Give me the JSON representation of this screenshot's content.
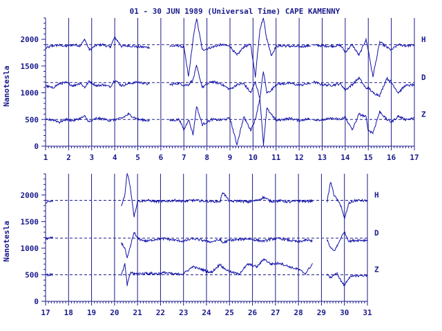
{
  "title": "01 - 30 JUN 1989 (Universal Time) CAPE KAMENNY",
  "ylabel": "Nanotesla",
  "colors": {
    "ink": "#1a1a8c",
    "trace": "#1010a8",
    "background": "#ffffff"
  },
  "chart_data": [
    {
      "type": "line",
      "panel": "days 1-17",
      "ylabel": "Nanotesla",
      "xlim": [
        1,
        17
      ],
      "ylim": [
        0,
        2400
      ],
      "x_ticks": [
        1,
        2,
        3,
        4,
        5,
        6,
        7,
        8,
        9,
        10,
        11,
        12,
        13,
        14,
        15,
        16,
        17
      ],
      "y_ticks": [
        0,
        500,
        1000,
        1500,
        2000
      ],
      "grid_vertical": true,
      "baselines": [
        {
          "name": "H",
          "value": 1900
        },
        {
          "name": "D",
          "value": 1190
        },
        {
          "name": "Z",
          "value": 500
        }
      ],
      "data_gaps": [
        [
          5.5,
          6.4
        ],
        [
          12.5,
          12.65
        ]
      ],
      "series": [
        {
          "name": "H",
          "x": [
            1,
            1.3,
            1.6,
            1.9,
            2.2,
            2.5,
            2.7,
            2.9,
            3.2,
            3.5,
            3.8,
            4.0,
            4.3,
            4.6,
            5.0,
            5.5,
            6.4,
            6.8,
            7.0,
            7.2,
            7.4,
            7.55,
            7.8,
            8.2,
            8.6,
            9.0,
            9.3,
            9.6,
            9.9,
            10.1,
            10.3,
            10.45,
            10.6,
            10.8,
            11.0,
            11.3,
            11.6,
            12.0,
            12.4,
            12.65,
            13.0,
            13.4,
            13.8,
            14.0,
            14.3,
            14.6,
            14.9,
            15.0,
            15.2,
            15.5,
            15.8,
            16.0,
            16.3,
            16.6,
            17.0
          ],
          "values": [
            1830,
            1880,
            1890,
            1870,
            1900,
            1880,
            2000,
            1800,
            1890,
            1900,
            1850,
            2040,
            1870,
            1880,
            1860,
            1850,
            1870,
            1880,
            1850,
            1300,
            2000,
            2400,
            1800,
            1850,
            1900,
            1870,
            1700,
            1860,
            1900,
            1300,
            2200,
            2400,
            2000,
            1700,
            1870,
            1880,
            1870,
            1860,
            1880,
            1890,
            1880,
            1870,
            1890,
            1760,
            1900,
            1700,
            2000,
            1800,
            1300,
            1950,
            1850,
            1800,
            1900,
            1880,
            1890
          ]
        },
        {
          "name": "D",
          "x": [
            1,
            1.3,
            1.6,
            1.9,
            2.2,
            2.5,
            2.7,
            2.9,
            3.2,
            3.5,
            3.8,
            4.0,
            4.3,
            4.6,
            5.0,
            5.5,
            6.4,
            6.8,
            7.0,
            7.2,
            7.4,
            7.55,
            7.8,
            8.2,
            8.6,
            9.0,
            9.3,
            9.6,
            9.9,
            10.1,
            10.3,
            10.45,
            10.6,
            10.8,
            11.0,
            11.3,
            11.6,
            12.0,
            12.4,
            12.65,
            13.0,
            13.4,
            13.8,
            14.0,
            14.3,
            14.6,
            14.9,
            15.0,
            15.2,
            15.5,
            15.8,
            16.0,
            16.3,
            16.6,
            17.0
          ],
          "values": [
            1130,
            1090,
            1170,
            1190,
            1130,
            1180,
            1100,
            1220,
            1130,
            1150,
            1110,
            1240,
            1130,
            1170,
            1200,
            1160,
            1150,
            1180,
            1140,
            1150,
            1250,
            1500,
            1100,
            1210,
            1170,
            1060,
            1150,
            1170,
            1000,
            1200,
            900,
            1400,
            1000,
            1050,
            1160,
            1170,
            1180,
            1140,
            1170,
            1200,
            1150,
            1140,
            1170,
            1050,
            1150,
            1280,
            1080,
            1100,
            1000,
            950,
            1270,
            1200,
            1000,
            1130,
            1150
          ]
        },
        {
          "name": "Z",
          "x": [
            1,
            1.3,
            1.6,
            1.9,
            2.2,
            2.5,
            2.7,
            2.9,
            3.2,
            3.5,
            3.8,
            4.0,
            4.3,
            4.6,
            5.0,
            5.5,
            6.4,
            6.8,
            7.0,
            7.2,
            7.4,
            7.55,
            7.8,
            8.2,
            8.6,
            9.0,
            9.3,
            9.6,
            9.9,
            10.1,
            10.3,
            10.45,
            10.6,
            10.8,
            11.0,
            11.3,
            11.6,
            12.0,
            12.4,
            12.65,
            13.0,
            13.4,
            13.8,
            14.0,
            14.3,
            14.6,
            14.9,
            15.0,
            15.2,
            15.5,
            15.8,
            16.0,
            16.3,
            16.6,
            17.0
          ],
          "values": [
            490,
            500,
            450,
            500,
            480,
            520,
            560,
            450,
            520,
            510,
            480,
            500,
            520,
            600,
            500,
            480,
            480,
            500,
            300,
            500,
            220,
            750,
            400,
            500,
            490,
            520,
            30,
            550,
            300,
            500,
            900,
            20,
            700,
            600,
            480,
            500,
            520,
            480,
            510,
            500,
            490,
            520,
            500,
            550,
            300,
            600,
            550,
            300,
            250,
            650,
            500,
            450,
            560,
            500,
            520
          ]
        }
      ]
    },
    {
      "type": "line",
      "panel": "days 17-31",
      "ylabel": "Nanotesla",
      "xlim": [
        17,
        31
      ],
      "ylim": [
        0,
        2400
      ],
      "x_ticks": [
        17,
        18,
        19,
        20,
        21,
        22,
        23,
        24,
        25,
        26,
        27,
        28,
        29,
        30,
        31
      ],
      "y_ticks": [
        0,
        500,
        1000,
        1500,
        2000
      ],
      "grid_vertical": true,
      "baselines": [
        {
          "name": "H",
          "value": 1900
        },
        {
          "name": "D",
          "value": 1190
        },
        {
          "name": "Z",
          "value": 500
        }
      ],
      "data_gaps": [
        [
          17.3,
          20.3
        ],
        [
          28.6,
          29.25
        ]
      ],
      "series": [
        {
          "name": "H",
          "x": [
            17,
            17.3,
            20.3,
            20.45,
            20.55,
            20.7,
            20.85,
            21.0,
            21.4,
            21.8,
            22.2,
            22.6,
            23.0,
            23.4,
            23.8,
            24.2,
            24.6,
            24.7,
            25.0,
            25.4,
            25.8,
            26.2,
            26.5,
            26.8,
            27.2,
            27.6,
            28.0,
            28.3,
            28.6,
            29.25,
            29.4,
            29.55,
            29.7,
            29.85,
            30.0,
            30.2,
            30.5,
            31.0
          ],
          "values": [
            1860,
            1880,
            1790,
            2000,
            2450,
            2100,
            1600,
            1880,
            1900,
            1880,
            1880,
            1900,
            1880,
            1900,
            1890,
            1880,
            1880,
            2060,
            1880,
            1890,
            1870,
            1900,
            1960,
            1880,
            1890,
            1870,
            1890,
            1880,
            1890,
            1880,
            2250,
            2000,
            1900,
            1800,
            1550,
            1850,
            1900,
            1890
          ]
        },
        {
          "name": "D",
          "x": [
            17,
            17.3,
            20.3,
            20.45,
            20.55,
            20.7,
            20.85,
            21.0,
            21.4,
            21.8,
            22.2,
            22.6,
            23.0,
            23.4,
            23.8,
            24.2,
            24.6,
            24.7,
            25.0,
            25.4,
            25.8,
            26.2,
            26.5,
            26.8,
            27.2,
            27.6,
            28.0,
            28.3,
            28.6,
            29.25,
            29.4,
            29.55,
            29.7,
            29.85,
            30.0,
            30.2,
            30.5,
            31.0
          ],
          "values": [
            1180,
            1190,
            1100,
            1000,
            800,
            1050,
            1300,
            1180,
            1130,
            1170,
            1180,
            1150,
            1130,
            1180,
            1150,
            1120,
            1160,
            1100,
            1150,
            1160,
            1180,
            1150,
            1130,
            1170,
            1180,
            1150,
            1120,
            1150,
            1140,
            1150,
            1000,
            950,
            1050,
            1200,
            1300,
            1130,
            1150,
            1150
          ]
        },
        {
          "name": "Z",
          "x": [
            17,
            17.3,
            20.3,
            20.45,
            20.55,
            20.7,
            20.85,
            21.0,
            21.4,
            21.8,
            22.2,
            22.6,
            23.0,
            23.4,
            23.8,
            24.2,
            24.6,
            24.7,
            25.0,
            25.4,
            25.8,
            26.2,
            26.5,
            26.8,
            27.2,
            27.6,
            28.0,
            28.3,
            28.6,
            29.25,
            29.4,
            29.55,
            29.7,
            29.85,
            30.0,
            30.2,
            30.5,
            31.0
          ],
          "values": [
            500,
            500,
            500,
            700,
            300,
            550,
            520,
            520,
            530,
            520,
            540,
            510,
            520,
            650,
            600,
            540,
            700,
            640,
            560,
            510,
            700,
            650,
            800,
            700,
            720,
            650,
            600,
            520,
            700,
            500,
            450,
            500,
            520,
            380,
            300,
            450,
            480,
            490
          ]
        }
      ]
    }
  ]
}
